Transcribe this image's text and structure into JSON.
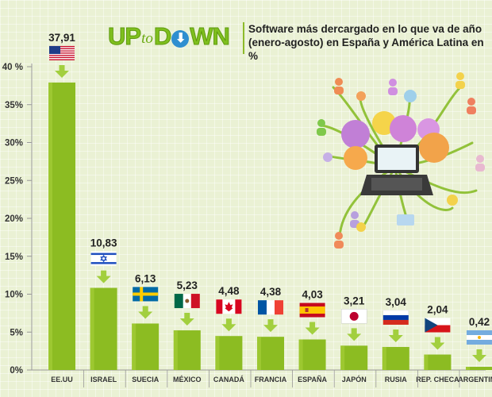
{
  "brand": {
    "up": "UP",
    "to": "to",
    "down_start": "D",
    "down_icon": "down-arrow-icon",
    "down_end": "WN"
  },
  "chart_data": {
    "type": "bar",
    "title": "Software más dercargado en lo que va de año (enero-agosto) en España y América Latina en %",
    "categories": [
      "EE.UU",
      "ISRAEL",
      "SUECIA",
      "MÉXICO",
      "CANADÁ",
      "FRANCIA",
      "ESPAÑA",
      "JAPÓN",
      "RUSIA",
      "REP. CHECA",
      "ARGENTINA"
    ],
    "values": [
      37.91,
      10.83,
      6.13,
      5.23,
      4.48,
      4.38,
      4.03,
      3.21,
      3.04,
      2.04,
      0.42
    ],
    "value_labels": [
      "37,91",
      "10,83",
      "6,13",
      "5,23",
      "4,48",
      "4,38",
      "4,03",
      "3,21",
      "3,04",
      "2,04",
      "0,42"
    ],
    "flags": [
      "us-flag",
      "israel-flag",
      "sweden-flag",
      "mexico-flag",
      "canada-flag",
      "france-flag",
      "spain-flag",
      "japan-flag",
      "russia-flag",
      "czech-flag",
      "argentina-flag"
    ],
    "yticks": [
      0,
      5,
      10,
      15,
      20,
      25,
      30,
      35,
      40
    ],
    "ytick_labels": [
      "0%",
      "5%",
      "10%",
      "15%",
      "20%",
      "25%",
      "30%",
      "35%",
      "40 %"
    ],
    "ylim": [
      0,
      40
    ],
    "xlabel": "",
    "ylabel": ""
  },
  "colors": {
    "bar": "#8cbc22",
    "bar_light": "#a9d13c",
    "arrow": "#a2cf3e",
    "text": "#333333",
    "axis": "#999999"
  }
}
